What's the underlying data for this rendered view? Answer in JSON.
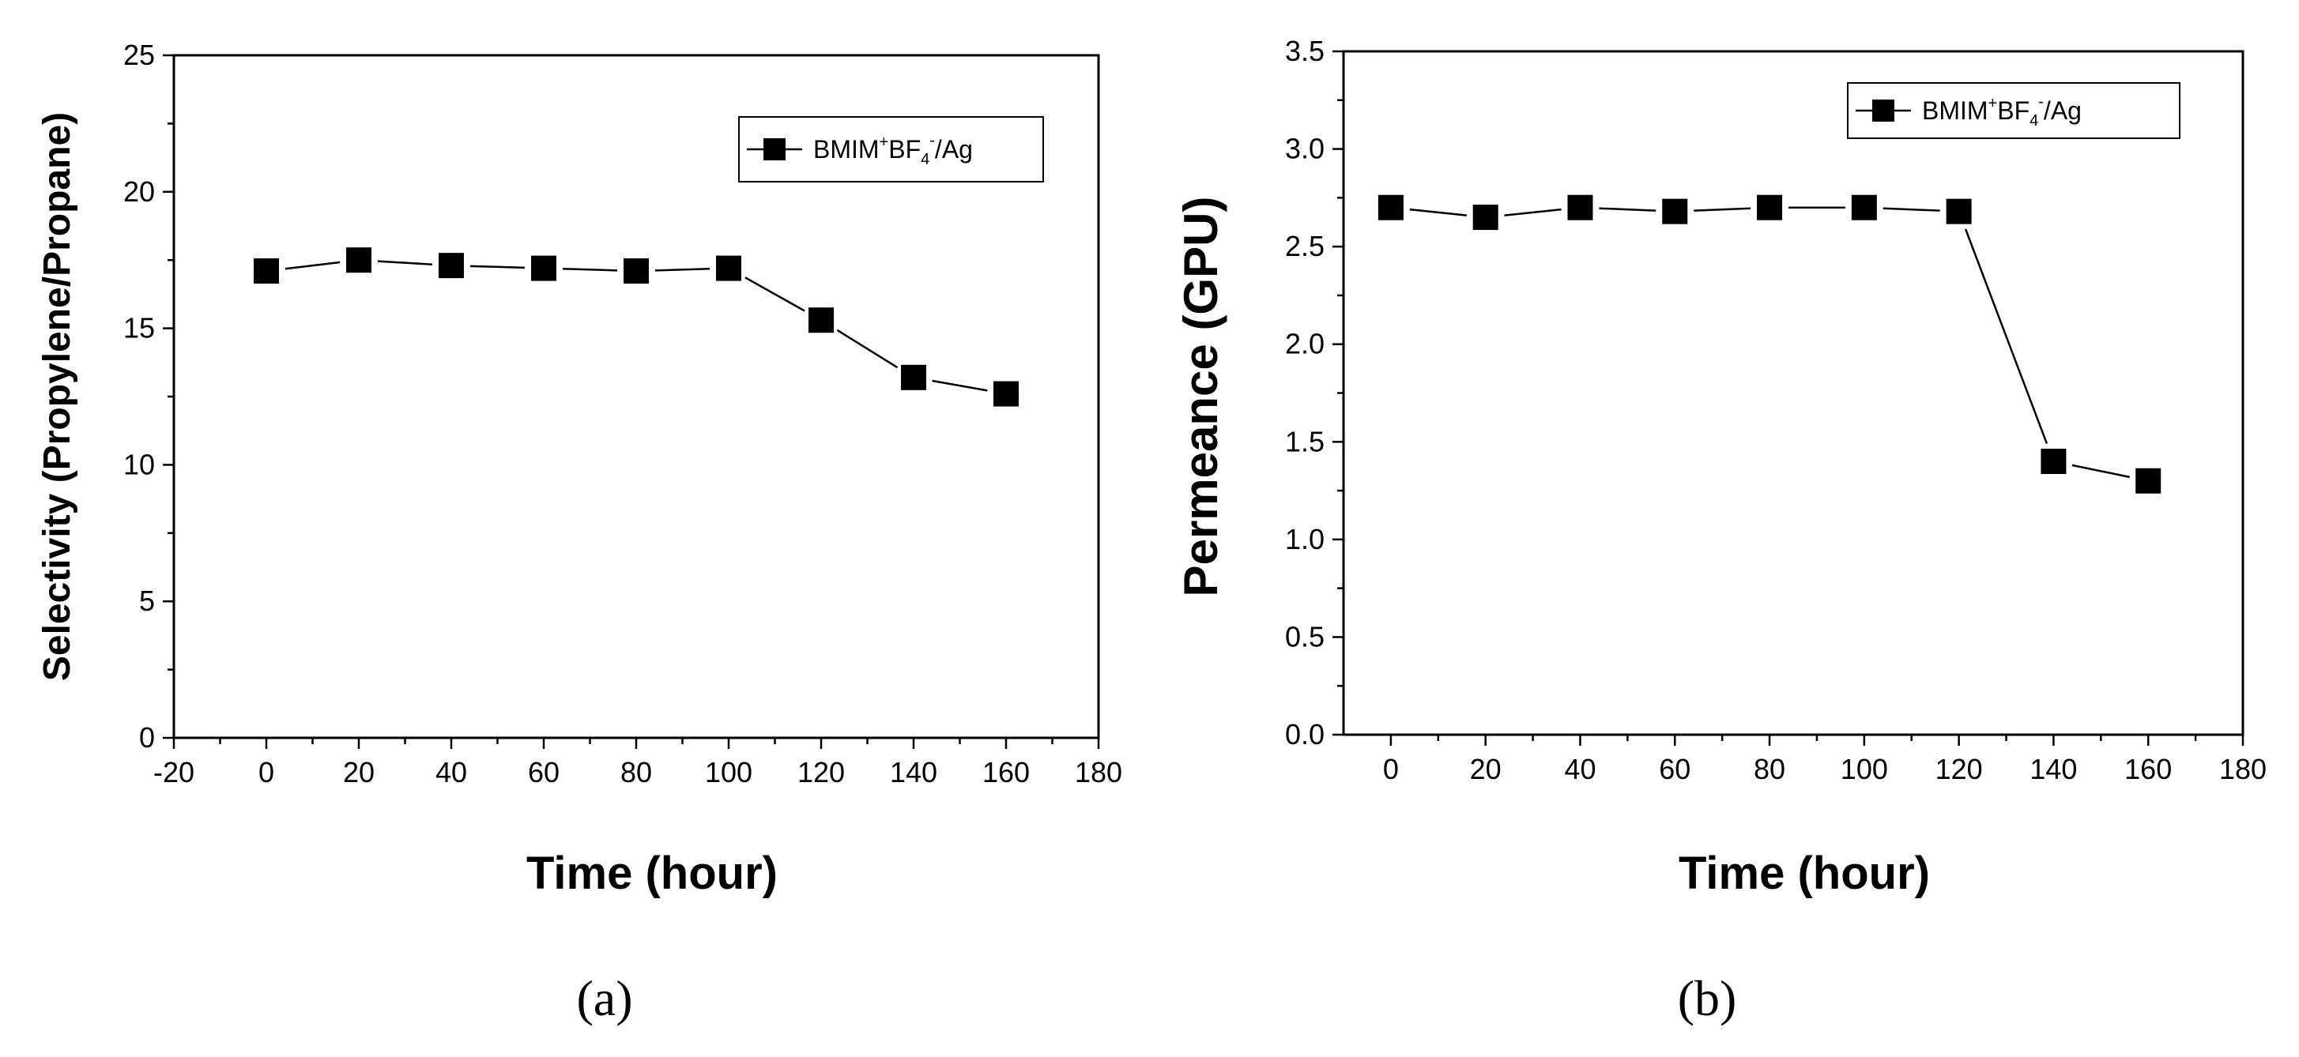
{
  "chart_data": [
    {
      "type": "line",
      "panel_label": "(a)",
      "x": [
        0,
        20,
        40,
        60,
        80,
        100,
        120,
        140,
        160
      ],
      "series": [
        {
          "name": "BMIM+BF4-/Ag",
          "values": [
            17.1,
            17.5,
            17.3,
            17.2,
            17.1,
            17.2,
            15.3,
            13.2,
            12.6
          ]
        }
      ],
      "xlabel": "Time (hour)",
      "ylabel": "Selectivity (Propylene/Propane)",
      "xlim": [
        -20,
        180
      ],
      "ylim": [
        0,
        25
      ],
      "xticks": [
        -20,
        0,
        20,
        40,
        60,
        80,
        100,
        120,
        140,
        160,
        180
      ],
      "yticks": [
        0,
        5,
        10,
        15,
        20,
        25
      ],
      "xtick_labels": [
        "-20",
        "0",
        "20",
        "40",
        "60",
        "80",
        "100",
        "120",
        "140",
        "160",
        "180"
      ],
      "ytick_labels": [
        "0",
        "5",
        "10",
        "15",
        "20",
        "25"
      ],
      "legend": {
        "position": "top-right",
        "parts": [
          "BMIM",
          "+",
          "BF",
          "4",
          "-",
          "/Ag"
        ]
      }
    },
    {
      "type": "line",
      "panel_label": "(b)",
      "x": [
        0,
        20,
        40,
        60,
        80,
        100,
        120,
        140,
        160
      ],
      "series": [
        {
          "name": "BMIM+BF4-/Ag",
          "values": [
            2.7,
            2.65,
            2.7,
            2.68,
            2.7,
            2.7,
            2.68,
            1.4,
            1.3
          ]
        }
      ],
      "xlabel": "Time (hour)",
      "ylabel": "Permeance (GPU)",
      "xlim": [
        -10,
        180
      ],
      "ylim": [
        0,
        3.5
      ],
      "xticks": [
        0,
        20,
        40,
        60,
        80,
        100,
        120,
        140,
        160,
        180
      ],
      "yticks": [
        0.0,
        0.5,
        1.0,
        1.5,
        2.0,
        2.5,
        3.0,
        3.5
      ],
      "xtick_labels": [
        "0",
        "20",
        "40",
        "60",
        "80",
        "100",
        "120",
        "140",
        "160",
        "180"
      ],
      "ytick_labels": [
        "0.0",
        "0.5",
        "1.0",
        "1.5",
        "2.0",
        "2.5",
        "3.0",
        "3.5"
      ],
      "legend": {
        "position": "top-right",
        "parts": [
          "BMIM",
          "+",
          "BF",
          "4",
          "-",
          "/Ag"
        ]
      }
    }
  ]
}
